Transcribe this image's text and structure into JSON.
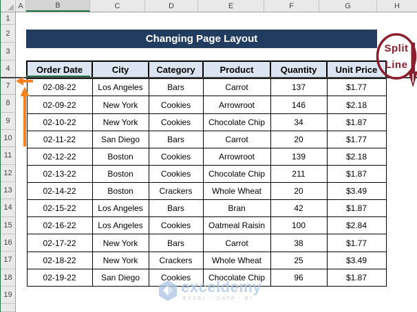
{
  "title_banner": {
    "text": "Changing Page Layout",
    "bg_color": "#223c60",
    "text_color": "#ffffff"
  },
  "spreadsheet": {
    "column_headers": [
      "A",
      "B",
      "C",
      "D",
      "E",
      "F",
      "G",
      "H"
    ],
    "selected_column": "B",
    "row_headers": [
      "1",
      "2",
      "3",
      "4",
      "7",
      "8",
      "9",
      "10",
      "11",
      "12",
      "13",
      "14",
      "15",
      "16",
      "17",
      "18",
      "19"
    ]
  },
  "table": {
    "columns": [
      "Order Date",
      "City",
      "Category",
      "Product",
      "Quantity",
      "Unit Price"
    ],
    "header_fill": "#dbe5f1",
    "rows": [
      [
        "02-08-22",
        "Los Angeles",
        "Bars",
        "Carrot",
        "137",
        "$1.77"
      ],
      [
        "02-09-22",
        "New York",
        "Cookies",
        "Arrowroot",
        "146",
        "$2.18"
      ],
      [
        "02-10-22",
        "New York",
        "Cookies",
        "Chocolate Chip",
        "34",
        "$1.87"
      ],
      [
        "02-11-22",
        "San Diego",
        "Bars",
        "Carrot",
        "20",
        "$1.77"
      ],
      [
        "02-12-22",
        "Boston",
        "Cookies",
        "Arrowroot",
        "139",
        "$2.18"
      ],
      [
        "02-13-22",
        "Boston",
        "Cookies",
        "Chocolate Chip",
        "211",
        "$1.87"
      ],
      [
        "02-14-22",
        "Boston",
        "Crackers",
        "Whole Wheat",
        "20",
        "$3.49"
      ],
      [
        "02-15-22",
        "Los Angeles",
        "Bars",
        "Bran",
        "42",
        "$1.87"
      ],
      [
        "02-16-22",
        "Los Angeles",
        "Cookies",
        "Oatmeal Raisin",
        "100",
        "$2.84"
      ],
      [
        "02-17-22",
        "New York",
        "Bars",
        "Carrot",
        "38",
        "$1.77"
      ],
      [
        "02-18-22",
        "New York",
        "Crackers",
        "Whole Wheat",
        "25",
        "$3.49"
      ],
      [
        "02-19-22",
        "San Diego",
        "Cookies",
        "Chocolate Chip",
        "96",
        "$1.87"
      ]
    ]
  },
  "annotations": {
    "split_label_line1": "Split",
    "split_label_line2": "Line",
    "annotation_color": "#8b1e2d",
    "arrow_color": "#f5821f"
  },
  "watermark": {
    "name": "exceldemy",
    "tagline": "EXCEL - DATA - BI",
    "color": "#aac4e4"
  }
}
